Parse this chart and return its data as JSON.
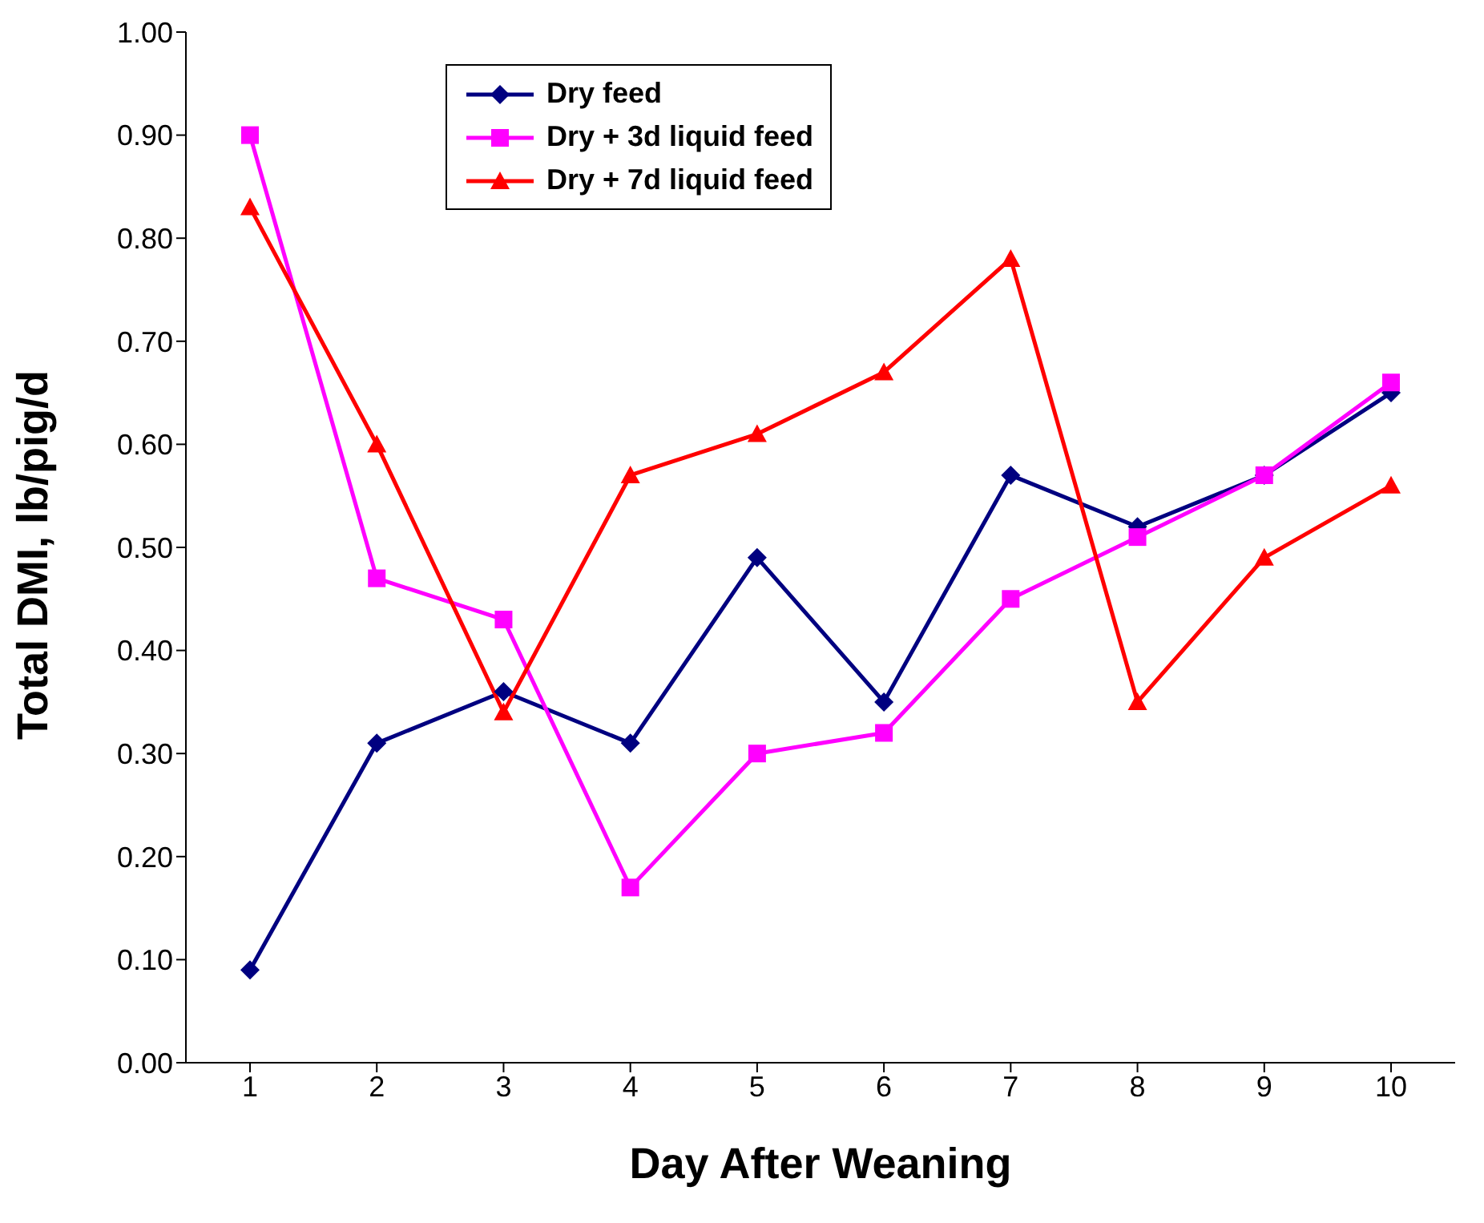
{
  "chart_data": {
    "type": "line",
    "xlabel": "Day After Weaning",
    "ylabel": "Total DMI, lb/pig/d",
    "categories": [
      "1",
      "2",
      "3",
      "4",
      "5",
      "6",
      "7",
      "8",
      "9",
      "10"
    ],
    "series": [
      {
        "name": "Dry feed",
        "color": "#000080",
        "marker": "diamond",
        "values": [
          0.09,
          0.31,
          0.36,
          0.31,
          0.49,
          0.35,
          0.57,
          0.52,
          0.57,
          0.65
        ]
      },
      {
        "name": "Dry + 3d liquid feed",
        "color": "#ff00ff",
        "marker": "square",
        "values": [
          0.9,
          0.47,
          0.43,
          0.17,
          0.3,
          0.32,
          0.45,
          0.51,
          0.57,
          0.66
        ]
      },
      {
        "name": "Dry + 7d liquid feed",
        "color": "#ff0000",
        "marker": "triangle",
        "values": [
          0.83,
          0.6,
          0.34,
          0.57,
          0.61,
          0.67,
          0.78,
          0.35,
          0.49,
          0.56
        ]
      }
    ],
    "ylim": [
      0,
      1
    ],
    "yticks": [
      {
        "value": 0,
        "label": "0.00"
      },
      {
        "value": 0.1,
        "label": "0.10"
      },
      {
        "value": 0.2,
        "label": "0.20"
      },
      {
        "value": 0.3,
        "label": "0.30"
      },
      {
        "value": 0.4,
        "label": "0.40"
      },
      {
        "value": 0.5,
        "label": "0.50"
      },
      {
        "value": 0.6,
        "label": "0.60"
      },
      {
        "value": 0.7,
        "label": "0.70"
      },
      {
        "value": 0.8,
        "label": "0.80"
      },
      {
        "value": 0.9,
        "label": "0.90"
      },
      {
        "value": 1,
        "label": "1.00"
      }
    ],
    "legend": "top left",
    "grid": false,
    "line_style": "solid"
  }
}
